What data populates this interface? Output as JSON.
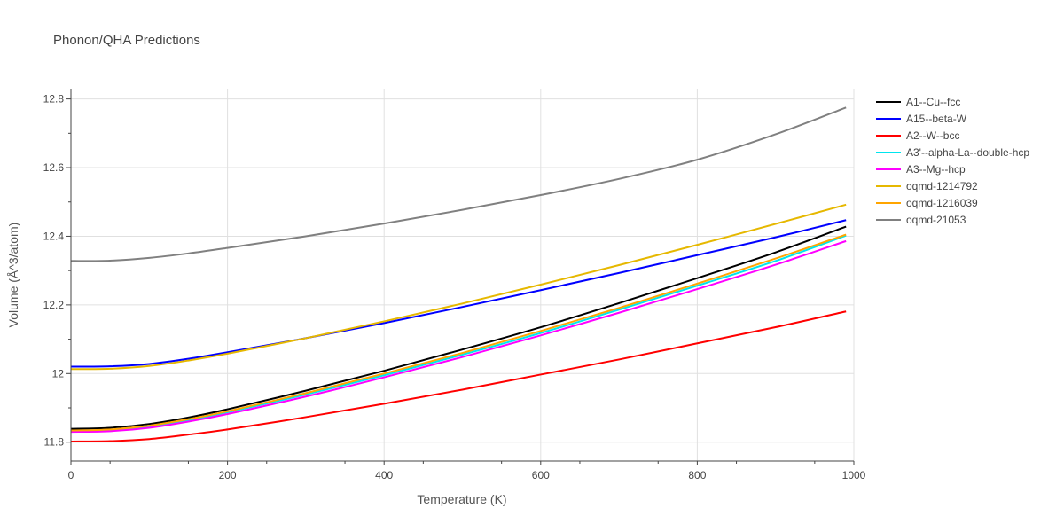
{
  "chart_data": {
    "type": "line",
    "title": "Phonon/QHA Predictions",
    "xlabel": "Temperature (K)",
    "ylabel": "Volume (Å^3/atom)",
    "xlim": [
      0,
      1000
    ],
    "ylim": [
      11.745,
      12.83
    ],
    "xticks": [
      0,
      200,
      400,
      600,
      800,
      1000
    ],
    "yticks": [
      11.8,
      12.0,
      12.2,
      12.4,
      12.6,
      12.8
    ],
    "xtick_labels": [
      "0",
      "200",
      "400",
      "600",
      "800",
      "1000"
    ],
    "ytick_labels": [
      "11.8",
      "12",
      "12.2",
      "12.4",
      "12.6",
      "12.8"
    ],
    "grid": true,
    "legend_position": "right",
    "series": [
      {
        "name": "A1--Cu--fcc",
        "color": "#000000",
        "x": [
          0,
          50,
          100,
          150,
          200,
          300,
          400,
          500,
          600,
          700,
          800,
          900,
          990
        ],
        "y": [
          11.839,
          11.842,
          11.853,
          11.872,
          11.896,
          11.95,
          12.008,
          12.07,
          12.135,
          12.205,
          12.278,
          12.353,
          12.428
        ]
      },
      {
        "name": "A15--beta-W",
        "color": "#0000ff",
        "x": [
          0,
          50,
          100,
          150,
          200,
          300,
          400,
          500,
          600,
          700,
          800,
          900,
          990
        ],
        "y": [
          12.02,
          12.021,
          12.028,
          12.043,
          12.062,
          12.103,
          12.147,
          12.194,
          12.243,
          12.293,
          12.345,
          12.397,
          12.447
        ]
      },
      {
        "name": "A2--W--bcc",
        "color": "#ff0000",
        "x": [
          0,
          50,
          100,
          150,
          200,
          300,
          400,
          500,
          600,
          700,
          800,
          900,
          990
        ],
        "y": [
          11.802,
          11.803,
          11.809,
          11.822,
          11.837,
          11.873,
          11.912,
          11.953,
          11.997,
          12.041,
          12.088,
          12.135,
          12.181
        ]
      },
      {
        "name": "A3'--alpha-La--double-hcp",
        "color": "#00e5ee",
        "x": [
          0,
          50,
          100,
          150,
          200,
          300,
          400,
          500,
          600,
          700,
          800,
          900,
          990
        ],
        "y": [
          11.832,
          11.835,
          11.845,
          11.864,
          11.887,
          11.939,
          11.995,
          12.055,
          12.118,
          12.186,
          12.256,
          12.328,
          12.402
        ]
      },
      {
        "name": "A3--Mg--hcp",
        "color": "#ff00ff",
        "x": [
          0,
          50,
          100,
          150,
          200,
          300,
          400,
          500,
          600,
          700,
          800,
          900,
          990
        ],
        "y": [
          11.83,
          11.832,
          11.842,
          11.86,
          11.882,
          11.933,
          11.989,
          12.048,
          12.111,
          12.177,
          12.246,
          12.317,
          12.386
        ]
      },
      {
        "name": "oqmd-1214792",
        "color": "#e6b800",
        "x": [
          0,
          50,
          100,
          150,
          200,
          300,
          400,
          500,
          600,
          700,
          800,
          900,
          990
        ],
        "y": [
          12.013,
          12.014,
          12.022,
          12.038,
          12.058,
          12.103,
          12.152,
          12.204,
          12.259,
          12.316,
          12.375,
          12.436,
          12.492
        ]
      },
      {
        "name": "oqmd-1216039",
        "color": "#ffa500",
        "x": [
          0,
          50,
          100,
          150,
          200,
          300,
          400,
          500,
          600,
          700,
          800,
          900,
          990
        ],
        "y": [
          11.834,
          11.837,
          11.848,
          11.867,
          11.89,
          11.943,
          12.0,
          12.06,
          12.124,
          12.191,
          12.262,
          12.335,
          12.405
        ]
      },
      {
        "name": "oqmd-21053",
        "color": "#808080",
        "x": [
          0,
          50,
          100,
          150,
          200,
          300,
          400,
          500,
          600,
          700,
          800,
          900,
          990
        ],
        "y": [
          12.328,
          12.329,
          12.337,
          12.35,
          12.366,
          12.4,
          12.437,
          12.477,
          12.52,
          12.567,
          12.623,
          12.697,
          12.775
        ]
      }
    ]
  }
}
